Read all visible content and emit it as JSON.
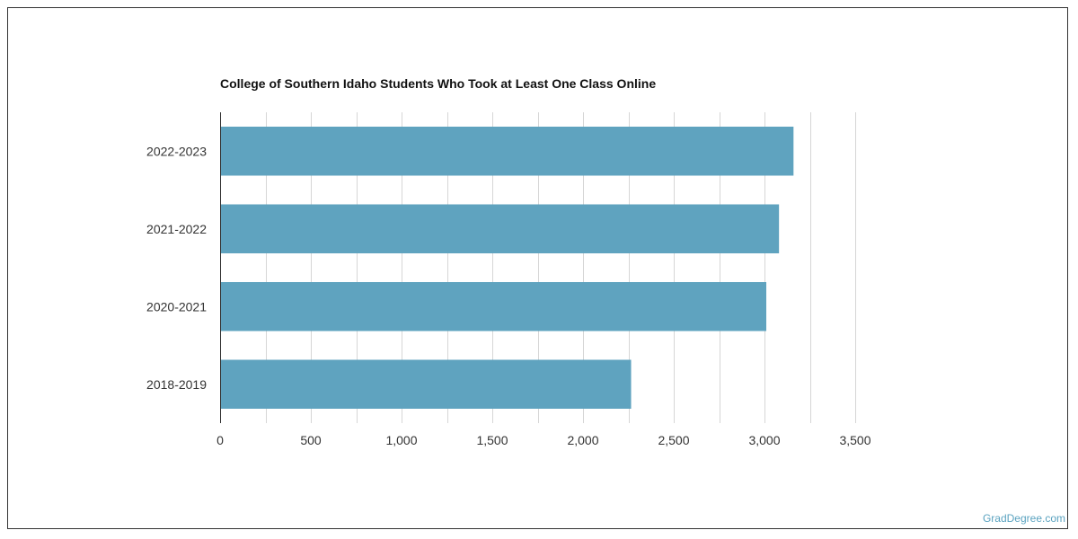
{
  "chart_data": {
    "type": "bar",
    "orientation": "horizontal",
    "title": "College of Southern Idaho Students Who Took at Least One Class Online",
    "categories": [
      "2022-2023",
      "2021-2022",
      "2020-2021",
      "2018-2019"
    ],
    "values": [
      3160,
      3080,
      3010,
      2265
    ],
    "xlabel": "",
    "ylabel": "",
    "xlim": [
      0,
      3500
    ],
    "xticks": [
      "0",
      "500",
      "1,000",
      "1,500",
      "2,000",
      "2,500",
      "3,000",
      "3,500"
    ],
    "grid": "vertical",
    "bar_color": "#5fa3bf"
  },
  "watermark": "GradDegree.com"
}
